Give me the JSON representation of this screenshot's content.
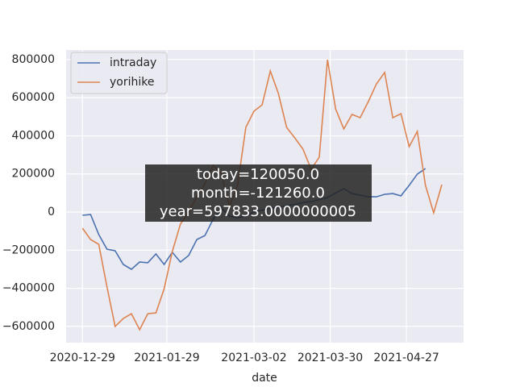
{
  "chart_data": {
    "type": "line",
    "x_label": "date",
    "x": [
      "2020-12-29",
      "2021-01-01",
      "2021-01-04",
      "2021-01-07",
      "2021-01-10",
      "2021-01-13",
      "2021-01-16",
      "2021-01-19",
      "2021-01-22",
      "2021-01-25",
      "2021-01-28",
      "2021-01-31",
      "2021-02-03",
      "2021-02-06",
      "2021-02-09",
      "2021-02-12",
      "2021-02-15",
      "2021-02-18",
      "2021-02-21",
      "2021-02-24",
      "2021-02-27",
      "2021-03-02",
      "2021-03-05",
      "2021-03-08",
      "2021-03-11",
      "2021-03-14",
      "2021-03-17",
      "2021-03-20",
      "2021-03-23",
      "2021-03-26",
      "2021-03-29",
      "2021-04-01",
      "2021-04-04",
      "2021-04-07",
      "2021-04-10",
      "2021-04-13",
      "2021-04-16",
      "2021-04-19",
      "2021-04-22",
      "2021-04-25",
      "2021-04-28",
      "2021-05-01",
      "2021-05-04",
      "2021-05-07",
      "2021-05-10"
    ],
    "series": [
      {
        "name": "intraday",
        "color": "#4c72b0",
        "values": [
          -17000,
          -13000,
          -118000,
          -195000,
          -203000,
          -275000,
          -300000,
          -262000,
          -266000,
          -220000,
          -275000,
          -211000,
          -262000,
          -228000,
          -144000,
          -123000,
          -38000,
          21000,
          -21000,
          -30000,
          -21000,
          0,
          10000,
          20000,
          25000,
          34000,
          40000,
          50000,
          55000,
          65000,
          76000,
          100000,
          123000,
          97000,
          89000,
          80000,
          80000,
          93000,
          97000,
          85000,
          140000,
          199000,
          228000,
          null,
          null
        ]
      },
      {
        "name": "yorihike",
        "color": "#dd8452",
        "values": [
          -85000,
          -144000,
          -169000,
          -393000,
          -600000,
          -558000,
          -533000,
          -617000,
          -533000,
          -529000,
          -402000,
          -207000,
          -63000,
          0,
          80000,
          150000,
          245000,
          200000,
          30000,
          140000,
          444000,
          529000,
          562000,
          740000,
          620000,
          444000,
          389000,
          330000,
          224000,
          288000,
          799000,
          541000,
          436000,
          512000,
          495000,
          579000,
          672000,
          732000,
          495000,
          516000,
          343000,
          423000,
          140000,
          -4000,
          144000
        ]
      }
    ],
    "xlim": [
      "2020-12-23",
      "2021-05-18"
    ],
    "xticks": [
      "2020-12-29",
      "2021-01-29",
      "2021-03-02",
      "2021-03-30",
      "2021-04-27"
    ],
    "ylim": [
      -685000,
      850000
    ],
    "yticks": [
      {
        "value": -600000,
        "label": "−600000"
      },
      {
        "value": -400000,
        "label": "−400000"
      },
      {
        "value": -200000,
        "label": "−200000"
      },
      0,
      200000,
      400000,
      600000,
      800000
    ],
    "grid": true,
    "legend": "upper-left",
    "annotation": [
      "today=120050.0",
      "month=-121260.0",
      "year=597833.0000000005"
    ]
  }
}
